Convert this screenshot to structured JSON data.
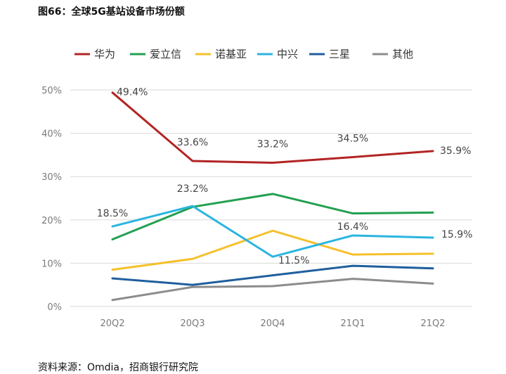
{
  "figure_title": "图66：全球5G基站设备市场份额",
  "source": "资料来源：Omdia，招商银行研究院",
  "chart_data": {
    "type": "line",
    "categories": [
      "20Q2",
      "20Q3",
      "20Q4",
      "21Q1",
      "21Q2"
    ],
    "ylim": [
      0,
      50
    ],
    "yticks": [
      0,
      10,
      20,
      30,
      40,
      50
    ],
    "ytick_labels": [
      "0%",
      "10%",
      "20%",
      "30%",
      "40%",
      "50%"
    ],
    "grid": true,
    "legend_position": "top",
    "series": [
      {
        "name": "华为",
        "color": "#b32424",
        "values": [
          49.4,
          33.6,
          33.2,
          34.5,
          35.9
        ],
        "labels": [
          "49.4%",
          "33.6%",
          "33.2%",
          "34.5%",
          "35.9%"
        ]
      },
      {
        "name": "爱立信",
        "color": "#22a050",
        "values": [
          15.5,
          23.0,
          26.0,
          21.5,
          21.7
        ],
        "labels": []
      },
      {
        "name": "诺基亚",
        "color": "#f5c02c",
        "values": [
          8.5,
          11.0,
          17.5,
          12.0,
          12.2
        ],
        "labels": []
      },
      {
        "name": "中兴",
        "color": "#2ab4e0",
        "values": [
          18.5,
          23.2,
          11.5,
          16.4,
          15.9
        ],
        "labels": [
          "18.5%",
          "23.2%",
          "11.5%",
          "16.4%",
          "15.9%"
        ]
      },
      {
        "name": "三星",
        "color": "#1f5f9e",
        "values": [
          6.5,
          5.0,
          7.2,
          9.4,
          8.8
        ],
        "labels": []
      },
      {
        "name": "其他",
        "color": "#8c8c8c",
        "values": [
          1.5,
          4.5,
          4.7,
          6.4,
          5.3
        ],
        "labels": []
      }
    ]
  }
}
